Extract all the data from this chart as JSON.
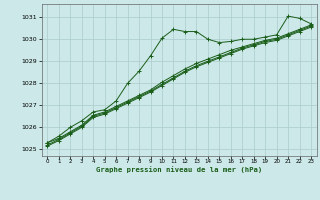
{
  "title": "Graphe pression niveau de la mer (hPa)",
  "bg_color": "#cce8e8",
  "grid_color": "#aacccc",
  "line_color": "#1a5e1a",
  "xlim": [
    -0.5,
    23.5
  ],
  "ylim": [
    1024.7,
    1031.6
  ],
  "yticks": [
    1025,
    1026,
    1027,
    1028,
    1029,
    1030,
    1031
  ],
  "xticks": [
    0,
    1,
    2,
    3,
    4,
    5,
    6,
    7,
    8,
    9,
    10,
    11,
    12,
    13,
    14,
    15,
    16,
    17,
    18,
    19,
    20,
    21,
    22,
    23
  ],
  "series1": {
    "x": [
      0,
      1,
      2,
      3,
      4,
      5,
      6,
      7,
      8,
      9,
      10,
      11,
      12,
      13,
      14,
      15,
      16,
      17,
      18,
      19,
      20,
      21,
      22,
      23
    ],
    "y": [
      1025.3,
      1025.6,
      1026.0,
      1026.3,
      1026.7,
      1026.8,
      1027.2,
      1028.0,
      1028.55,
      1029.25,
      1030.05,
      1030.45,
      1030.35,
      1030.35,
      1030.0,
      1029.85,
      1029.9,
      1030.0,
      1030.0,
      1030.1,
      1030.2,
      1031.05,
      1030.95,
      1030.7
    ]
  },
  "series2": {
    "x": [
      0,
      1,
      2,
      3,
      4,
      5,
      6,
      7,
      8,
      9,
      10,
      11,
      12,
      13,
      14,
      15,
      16,
      17,
      18,
      19,
      20,
      21,
      22,
      23
    ],
    "y": [
      1025.3,
      1025.5,
      1025.8,
      1026.1,
      1026.55,
      1026.7,
      1026.95,
      1027.2,
      1027.45,
      1027.7,
      1028.05,
      1028.35,
      1028.65,
      1028.9,
      1029.1,
      1029.3,
      1029.5,
      1029.65,
      1029.8,
      1029.95,
      1030.05,
      1030.25,
      1030.45,
      1030.65
    ]
  },
  "series3": {
    "x": [
      0,
      1,
      2,
      3,
      4,
      5,
      6,
      7,
      8,
      9,
      10,
      11,
      12,
      13,
      14,
      15,
      16,
      17,
      18,
      19,
      20,
      21,
      22,
      23
    ],
    "y": [
      1025.2,
      1025.45,
      1025.75,
      1026.05,
      1026.5,
      1026.65,
      1026.9,
      1027.15,
      1027.4,
      1027.65,
      1027.95,
      1028.25,
      1028.55,
      1028.8,
      1029.0,
      1029.2,
      1029.4,
      1029.6,
      1029.75,
      1029.9,
      1030.0,
      1030.2,
      1030.4,
      1030.6
    ]
  },
  "series4": {
    "x": [
      0,
      1,
      2,
      3,
      4,
      5,
      6,
      7,
      8,
      9,
      10,
      11,
      12,
      13,
      14,
      15,
      16,
      17,
      18,
      19,
      20,
      21,
      22,
      23
    ],
    "y": [
      1025.15,
      1025.4,
      1025.7,
      1026.0,
      1026.45,
      1026.6,
      1026.85,
      1027.1,
      1027.35,
      1027.6,
      1027.9,
      1028.2,
      1028.5,
      1028.75,
      1028.95,
      1029.15,
      1029.35,
      1029.55,
      1029.7,
      1029.85,
      1029.95,
      1030.15,
      1030.35,
      1030.55
    ]
  }
}
